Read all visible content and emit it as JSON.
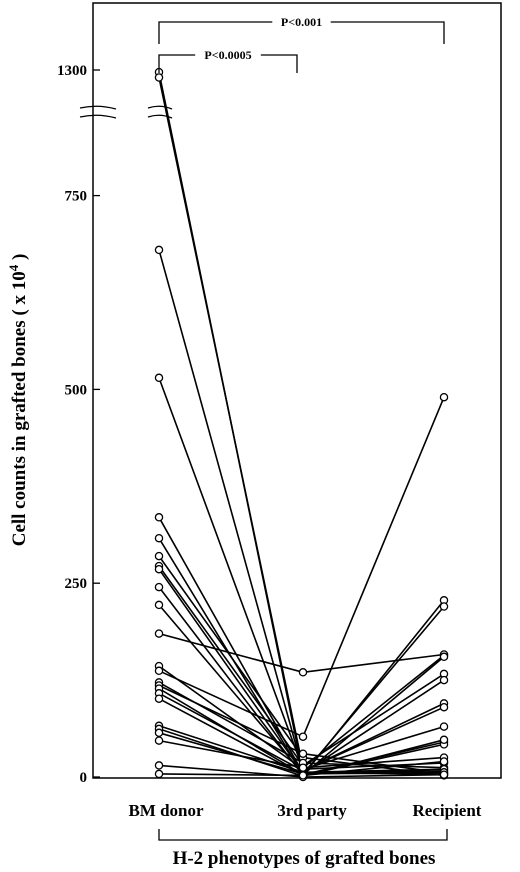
{
  "chart_data": {
    "type": "line",
    "xlabel": "H-2 phenotypes of grafted bones",
    "ylabel_main": "Cell counts in grafted bones ( x 10",
    "ylabel_sup": "4",
    "ylabel_end": " )",
    "categories": [
      "BM donor",
      "3rd party",
      "Recipient"
    ],
    "y_ticks": [
      {
        "value": 0,
        "label": "0"
      },
      {
        "value": 250,
        "label": "250"
      },
      {
        "value": 500,
        "label": "500"
      },
      {
        "value": 750,
        "label": "750"
      },
      {
        "value": 1300,
        "label": "1300"
      }
    ],
    "ylim": [
      0,
      1300
    ],
    "y_axis_break": {
      "lower_top": 850,
      "upper_value": 1300
    },
    "significance": [
      {
        "from": "BM donor",
        "to": "3rd party",
        "label": "P<0.0005"
      },
      {
        "from": "BM donor",
        "to": "Recipient",
        "label": "P<0.001"
      }
    ],
    "series": [
      {
        "values": [
          1280,
          5,
          4
        ]
      },
      {
        "values": [
          1230,
          12,
          157
        ]
      },
      {
        "values": [
          680,
          8,
          95
        ]
      },
      {
        "values": [
          515,
          10,
          65
        ]
      },
      {
        "values": [
          335,
          5,
          8
        ]
      },
      {
        "values": [
          308,
          3,
          45
        ]
      },
      {
        "values": [
          285,
          25,
          2
        ]
      },
      {
        "values": [
          272,
          15,
          133
        ]
      },
      {
        "values": [
          268,
          5,
          125
        ]
      },
      {
        "values": [
          245,
          2,
          228
        ]
      },
      {
        "values": [
          222,
          4,
          220
        ]
      },
      {
        "values": [
          185,
          135,
          158
        ]
      },
      {
        "values": [
          143,
          10,
          18
        ]
      },
      {
        "values": [
          137,
          52,
          490
        ]
      },
      {
        "values": [
          122,
          18,
          12
        ]
      },
      {
        "values": [
          118,
          30,
          5
        ]
      },
      {
        "values": [
          114,
          3,
          155
        ]
      },
      {
        "values": [
          108,
          8,
          90
        ]
      },
      {
        "values": [
          101,
          2,
          42
        ]
      },
      {
        "values": [
          66,
          6,
          10
        ]
      },
      {
        "values": [
          62,
          1,
          48
        ]
      },
      {
        "values": [
          57,
          4,
          6
        ]
      },
      {
        "values": [
          47,
          12,
          25
        ]
      },
      {
        "values": [
          15,
          0,
          3
        ]
      },
      {
        "values": [
          4,
          2,
          20
        ]
      }
    ]
  }
}
